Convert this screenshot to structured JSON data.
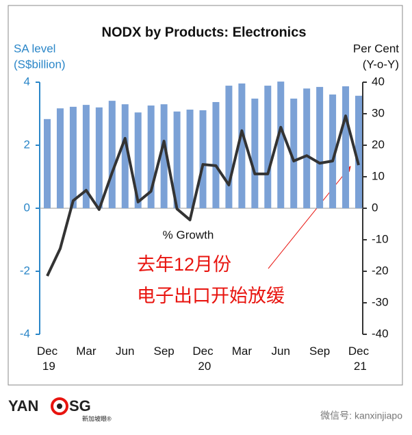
{
  "chart_data": {
    "type": "bar-line",
    "title": "NODX by Products: Electronics",
    "y_label": [
      "SA level",
      "(S$billion)"
    ],
    "y2_label": [
      "Per Cent",
      "(Y-o-Y)"
    ],
    "categories": [
      "Dec 19",
      null,
      null,
      "Mar",
      null,
      null,
      "Jun",
      null,
      null,
      "Sep",
      null,
      null,
      "Dec 20",
      null,
      null,
      "Mar",
      null,
      null,
      "Jun",
      null,
      null,
      "Sep",
      null,
      null,
      "Dec 21"
    ],
    "series": [
      {
        "type": "bar",
        "color": "#7ba1d6",
        "values": [
          2.83,
          3.17,
          3.22,
          3.28,
          3.2,
          3.41,
          3.3,
          3.04,
          3.26,
          3.3,
          3.07,
          3.13,
          3.11,
          3.37,
          3.89,
          3.96,
          3.48,
          3.89,
          4.02,
          3.48,
          3.8,
          3.85,
          3.61,
          3.87,
          3.57
        ]
      },
      {
        "type": "line",
        "axis": "y2",
        "name": "% Growth",
        "color": "#333333",
        "values": [
          -21.5,
          -12.8,
          2.4,
          5.7,
          -0.4,
          11.3,
          22.2,
          2,
          5.4,
          21.3,
          -0.2,
          -3.7,
          13.9,
          13.5,
          7.4,
          24.6,
          10.9,
          10.9,
          25.7,
          15,
          16.7,
          14.3,
          15,
          29.3,
          13.7
        ]
      }
    ],
    "ylim": [
      -4,
      4
    ],
    "yticks": [
      -4,
      -2,
      0,
      2,
      4
    ],
    "y_color": "#2a86c8",
    "y2lim": [
      -40,
      40
    ],
    "y2ticks": [
      -40,
      -30,
      -20,
      -10,
      0,
      10,
      20,
      30,
      40
    ],
    "annotation": [
      "去年12月份",
      "电子出口开始放缓"
    ],
    "annotation_color": "#e8140f"
  },
  "footer": {
    "logo_left": "YAN",
    "logo_right": "SG",
    "logo_sub": "新加坡眼®",
    "wechat": "微信号: kanxinjiapo"
  }
}
